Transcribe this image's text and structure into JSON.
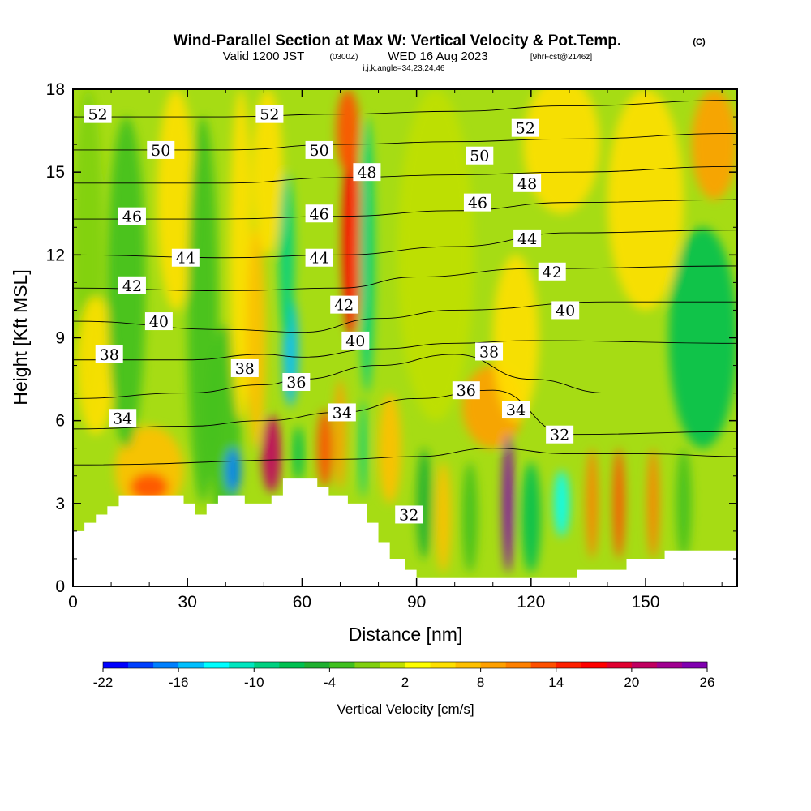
{
  "title": {
    "main": "Wind-Parallel Section at Max W: Vertical Velocity & Pot.Temp.",
    "copyright": "(C)",
    "valid_prefix": "Valid 1200 JST",
    "valid_utc": "(0300Z)",
    "valid_date": "WED 16 Aug 2023",
    "forecast": "[9hrFcst@2146z]",
    "indices": "i,j,k,angle=34,23,24,46"
  },
  "chart_data": {
    "type": "heatmap",
    "title": "Wind-Parallel Section at Max W: Vertical Velocity & Pot.Temp.",
    "xlabel": "Distance [nm]",
    "ylabel": "Height [Kft MSL]",
    "xlim": [
      0,
      174
    ],
    "ylim": [
      0,
      18
    ],
    "x_ticks": [
      "0",
      "30",
      "60",
      "90",
      "120",
      "150"
    ],
    "y_ticks": [
      "0",
      "3",
      "6",
      "9",
      "12",
      "15",
      "18"
    ],
    "colorbar": {
      "title": "Vertical Velocity [cm/s]",
      "tick_labels": [
        "-22",
        "-16",
        "-10",
        "-4",
        "2",
        "8",
        "14",
        "20",
        "26"
      ],
      "levels": [
        -22,
        -20,
        -18,
        -16,
        -14,
        -12,
        -10,
        -8,
        -6,
        -4,
        -2,
        0,
        2,
        4,
        6,
        8,
        10,
        12,
        14,
        16,
        18,
        20,
        22,
        24,
        26
      ],
      "colors": [
        "#0000ff",
        "#0040ff",
        "#0080ff",
        "#00bfff",
        "#00ffff",
        "#00e6bf",
        "#00d080",
        "#00c050",
        "#20b030",
        "#40c020",
        "#80d010",
        "#c0e000",
        "#ffff00",
        "#ffe000",
        "#ffc000",
        "#ffa000",
        "#ff8000",
        "#ff5000",
        "#ff2000",
        "#ff0000",
        "#e00030",
        "#c00060",
        "#a00090",
        "#8000b0"
      ]
    },
    "terrain_height_kft": [
      [
        0,
        2
      ],
      [
        3,
        2
      ],
      [
        3,
        2.3
      ],
      [
        6,
        2.3
      ],
      [
        6,
        2.6
      ],
      [
        9,
        2.6
      ],
      [
        9,
        2.9
      ],
      [
        12,
        2.9
      ],
      [
        12,
        3.3
      ],
      [
        29,
        3.3
      ],
      [
        29,
        3
      ],
      [
        32,
        3
      ],
      [
        32,
        2.6
      ],
      [
        35,
        2.6
      ],
      [
        35,
        3
      ],
      [
        38,
        3
      ],
      [
        38,
        3.3
      ],
      [
        45,
        3.3
      ],
      [
        45,
        3
      ],
      [
        52,
        3
      ],
      [
        52,
        3.3
      ],
      [
        55,
        3.3
      ],
      [
        55,
        3.9
      ],
      [
        64,
        3.9
      ],
      [
        64,
        3.6
      ],
      [
        67,
        3.6
      ],
      [
        67,
        3.3
      ],
      [
        72,
        3.3
      ],
      [
        72,
        3
      ],
      [
        77,
        3
      ],
      [
        77,
        2.3
      ],
      [
        80,
        2.3
      ],
      [
        80,
        1.6
      ],
      [
        83,
        1.6
      ],
      [
        83,
        1
      ],
      [
        87,
        1
      ],
      [
        87,
        0.6
      ],
      [
        90,
        0.6
      ],
      [
        90,
        0.3
      ],
      [
        132,
        0.3
      ],
      [
        132,
        0.6
      ],
      [
        145,
        0.6
      ],
      [
        145,
        1
      ],
      [
        155,
        1
      ],
      [
        155,
        1.3
      ],
      [
        174,
        1.3
      ]
    ],
    "cells": [
      {
        "x": 4,
        "y": 12,
        "rx": 4,
        "ry": 6,
        "w": -2
      },
      {
        "x": 6,
        "y": 8,
        "rx": 5,
        "ry": 2.5,
        "w": 4
      },
      {
        "x": 20,
        "y": 4.2,
        "rx": 9,
        "ry": 1.6,
        "w": 6
      },
      {
        "x": 20,
        "y": 3.6,
        "rx": 5,
        "ry": 0.5,
        "w": 12
      },
      {
        "x": 14,
        "y": 11,
        "rx": 5,
        "ry": 6,
        "w": -3
      },
      {
        "x": 27,
        "y": 14,
        "rx": 5,
        "ry": 4,
        "w": 4
      },
      {
        "x": 34,
        "y": 10,
        "rx": 4,
        "ry": 7,
        "w": -4
      },
      {
        "x": 40,
        "y": 5.5,
        "rx": 4,
        "ry": 4,
        "w": -3
      },
      {
        "x": 42,
        "y": 4.2,
        "rx": 2,
        "ry": 0.8,
        "w": -18
      },
      {
        "x": 44,
        "y": 12,
        "rx": 3,
        "ry": 6,
        "w": 4
      },
      {
        "x": 48,
        "y": 9,
        "rx": 2.5,
        "ry": 4,
        "w": 6
      },
      {
        "x": 51,
        "y": 15,
        "rx": 4,
        "ry": 3,
        "w": 4
      },
      {
        "x": 52,
        "y": 4.8,
        "rx": 2.5,
        "ry": 1.4,
        "w": 20
      },
      {
        "x": 57,
        "y": 8.5,
        "rx": 2,
        "ry": 2,
        "w": -16
      },
      {
        "x": 56,
        "y": 12,
        "rx": 2,
        "ry": 3,
        "w": -10
      },
      {
        "x": 59,
        "y": 4.8,
        "rx": 1.5,
        "ry": 1,
        "w": -8
      },
      {
        "x": 66,
        "y": 5,
        "rx": 2,
        "ry": 1.4,
        "w": 12
      },
      {
        "x": 70,
        "y": 5.5,
        "rx": 1.5,
        "ry": 2,
        "w": 8
      },
      {
        "x": 73,
        "y": 12.5,
        "rx": 2.5,
        "ry": 3.5,
        "w": 16
      },
      {
        "x": 72,
        "y": 16.5,
        "rx": 3,
        "ry": 1.5,
        "w": 12
      },
      {
        "x": 77,
        "y": 12,
        "rx": 2,
        "ry": 5,
        "w": -10
      },
      {
        "x": 76,
        "y": 5,
        "rx": 1,
        "ry": 1.8,
        "w": -10
      },
      {
        "x": 83,
        "y": 5,
        "rx": 3,
        "ry": 2,
        "w": 6
      },
      {
        "x": 92,
        "y": 3,
        "rx": 2,
        "ry": 2,
        "w": -6
      },
      {
        "x": 97,
        "y": 2.5,
        "rx": 2,
        "ry": 2,
        "w": 6
      },
      {
        "x": 104,
        "y": 2.5,
        "rx": 2,
        "ry": 2,
        "w": -4
      },
      {
        "x": 110,
        "y": 6.5,
        "rx": 8,
        "ry": 1.5,
        "w": 8
      },
      {
        "x": 114,
        "y": 3,
        "rx": 1.5,
        "ry": 2.5,
        "w": 26
      },
      {
        "x": 120,
        "y": 2.5,
        "rx": 2.5,
        "ry": 2,
        "w": -8
      },
      {
        "x": 128,
        "y": 3,
        "rx": 2,
        "ry": 1.2,
        "w": -14
      },
      {
        "x": 136,
        "y": 3,
        "rx": 1.5,
        "ry": 2,
        "w": 10
      },
      {
        "x": 143,
        "y": 3,
        "rx": 1.5,
        "ry": 2,
        "w": 12
      },
      {
        "x": 152,
        "y": 3,
        "rx": 1.5,
        "ry": 2,
        "w": 10
      },
      {
        "x": 160,
        "y": 3,
        "rx": 2,
        "ry": 2,
        "w": -4
      },
      {
        "x": 165,
        "y": 9,
        "rx": 9,
        "ry": 4,
        "w": -8
      },
      {
        "x": 150,
        "y": 14,
        "rx": 10,
        "ry": 4,
        "w": 4
      },
      {
        "x": 168,
        "y": 16,
        "rx": 6,
        "ry": 2,
        "w": 8
      },
      {
        "x": 128,
        "y": 16,
        "rx": 10,
        "ry": 2.5,
        "w": 4
      },
      {
        "x": 116,
        "y": 9,
        "rx": 6,
        "ry": 3,
        "w": 4
      },
      {
        "x": 95,
        "y": 12,
        "rx": 10,
        "ry": 6,
        "w": 0
      }
    ],
    "isentropes": [
      {
        "label": "32",
        "points": [
          [
            0,
            4.4
          ],
          [
            70,
            4.6
          ],
          [
            90,
            4.7
          ],
          [
            110,
            5
          ],
          [
            130,
            4.8
          ],
          [
            150,
            4.8
          ],
          [
            174,
            4.7
          ]
        ]
      },
      {
        "label": "34",
        "points": [
          [
            0,
            5.7
          ],
          [
            30,
            5.8
          ],
          [
            50,
            6
          ],
          [
            70,
            6.3
          ],
          [
            90,
            6.8
          ],
          [
            110,
            7.1
          ],
          [
            130,
            5.5
          ],
          [
            174,
            5.6
          ]
        ]
      },
      {
        "label": "36",
        "points": [
          [
            0,
            6.8
          ],
          [
            30,
            7
          ],
          [
            50,
            7.3
          ],
          [
            60,
            7.5
          ],
          [
            80,
            8
          ],
          [
            100,
            8.4
          ],
          [
            120,
            7.5
          ],
          [
            140,
            7
          ],
          [
            174,
            7
          ]
        ]
      },
      {
        "label": "38",
        "points": [
          [
            0,
            8.2
          ],
          [
            30,
            8.2
          ],
          [
            50,
            8.4
          ],
          [
            60,
            8.3
          ],
          [
            80,
            8.6
          ],
          [
            100,
            8.8
          ],
          [
            120,
            8.9
          ],
          [
            174,
            8.8
          ]
        ]
      },
      {
        "label": "40",
        "points": [
          [
            0,
            9.6
          ],
          [
            40,
            9.3
          ],
          [
            60,
            9.2
          ],
          [
            80,
            9.7
          ],
          [
            100,
            10
          ],
          [
            140,
            10.3
          ],
          [
            174,
            10.3
          ]
        ]
      },
      {
        "label": "42",
        "points": [
          [
            0,
            10.8
          ],
          [
            40,
            10.7
          ],
          [
            70,
            10.8
          ],
          [
            90,
            11.2
          ],
          [
            120,
            11.5
          ],
          [
            174,
            11.6
          ]
        ]
      },
      {
        "label": "44",
        "points": [
          [
            0,
            12
          ],
          [
            40,
            11.9
          ],
          [
            70,
            12
          ],
          [
            100,
            12.3
          ],
          [
            130,
            12.8
          ],
          [
            174,
            12.9
          ]
        ]
      },
      {
        "label": "46",
        "points": [
          [
            0,
            13.3
          ],
          [
            40,
            13.3
          ],
          [
            70,
            13.4
          ],
          [
            100,
            13.6
          ],
          [
            130,
            13.9
          ],
          [
            174,
            14
          ]
        ]
      },
      {
        "label": "48",
        "points": [
          [
            0,
            14.6
          ],
          [
            40,
            14.6
          ],
          [
            70,
            14.8
          ],
          [
            100,
            14.9
          ],
          [
            130,
            15
          ],
          [
            174,
            15.2
          ]
        ]
      },
      {
        "label": "50",
        "points": [
          [
            0,
            15.8
          ],
          [
            40,
            15.8
          ],
          [
            70,
            16
          ],
          [
            100,
            16.1
          ],
          [
            130,
            16.2
          ],
          [
            174,
            16.4
          ]
        ]
      },
      {
        "label": "52",
        "points": [
          [
            0,
            17
          ],
          [
            40,
            17
          ],
          [
            70,
            17.1
          ],
          [
            100,
            17.2
          ],
          [
            130,
            17.4
          ],
          [
            174,
            17.6
          ]
        ]
      }
    ],
    "contour_labels": [
      {
        "text": "52",
        "x": 6.5,
        "y": 17.1
      },
      {
        "text": "52",
        "x": 51.5,
        "y": 17.1
      },
      {
        "text": "52",
        "x": 118.5,
        "y": 16.6
      },
      {
        "text": "50",
        "x": 23,
        "y": 15.8
      },
      {
        "text": "50",
        "x": 64.5,
        "y": 15.8
      },
      {
        "text": "50",
        "x": 106.5,
        "y": 15.6
      },
      {
        "text": "48",
        "x": 77,
        "y": 15
      },
      {
        "text": "48",
        "x": 119,
        "y": 14.6
      },
      {
        "text": "46",
        "x": 15.5,
        "y": 13.4
      },
      {
        "text": "46",
        "x": 64.5,
        "y": 13.5
      },
      {
        "text": "46",
        "x": 106,
        "y": 13.9
      },
      {
        "text": "44",
        "x": 29.5,
        "y": 11.9
      },
      {
        "text": "44",
        "x": 64.5,
        "y": 11.9
      },
      {
        "text": "44",
        "x": 119,
        "y": 12.6
      },
      {
        "text": "42",
        "x": 15.5,
        "y": 10.9
      },
      {
        "text": "42",
        "x": 71,
        "y": 10.2
      },
      {
        "text": "42",
        "x": 125.5,
        "y": 11.4
      },
      {
        "text": "40",
        "x": 22.5,
        "y": 9.6
      },
      {
        "text": "40",
        "x": 74,
        "y": 8.9
      },
      {
        "text": "40",
        "x": 129,
        "y": 10
      },
      {
        "text": "38",
        "x": 9.5,
        "y": 8.4
      },
      {
        "text": "38",
        "x": 45,
        "y": 7.9
      },
      {
        "text": "38",
        "x": 109,
        "y": 8.5
      },
      {
        "text": "36",
        "x": 58.5,
        "y": 7.4
      },
      {
        "text": "36",
        "x": 103,
        "y": 7.1
      },
      {
        "text": "34",
        "x": 13,
        "y": 6.1
      },
      {
        "text": "34",
        "x": 70.5,
        "y": 6.3
      },
      {
        "text": "34",
        "x": 116,
        "y": 6.4
      },
      {
        "text": "32",
        "x": 127.5,
        "y": 5.5
      },
      {
        "text": "32",
        "x": 88,
        "y": 2.6
      }
    ],
    "grid": false,
    "legend": "bottom"
  }
}
